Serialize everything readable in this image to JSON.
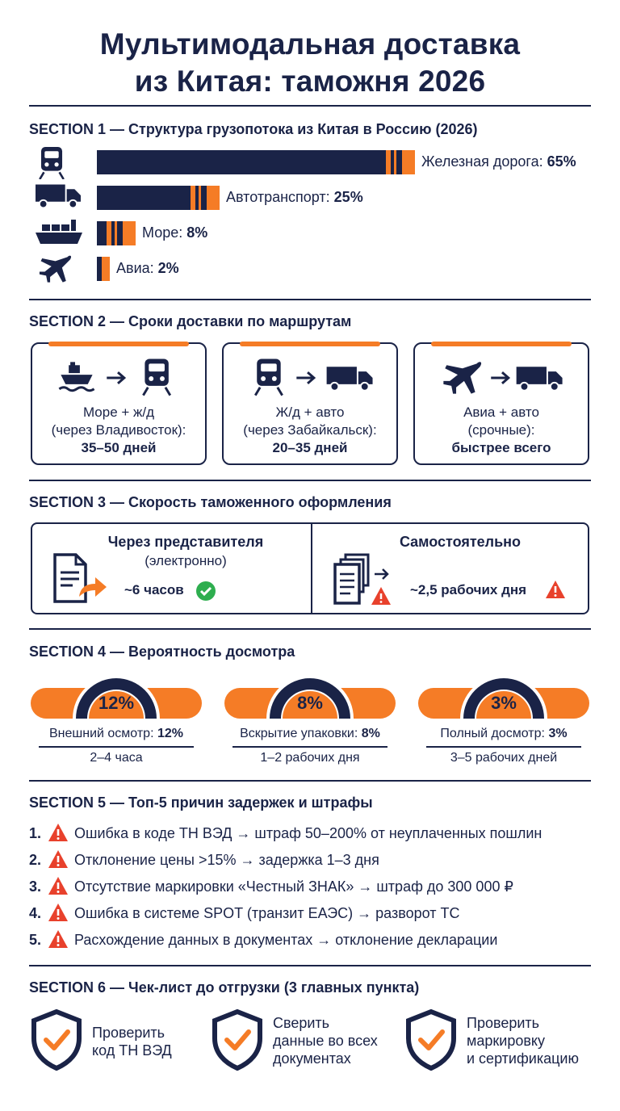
{
  "title": {
    "line1": "Мультимодальная доставка",
    "line2": "из Китая: таможня 2026"
  },
  "colors": {
    "navy": "#1a2347",
    "orange": "#f57c26",
    "green": "#2eae4f",
    "warning": "#e8412c"
  },
  "section1": {
    "num": "SECTION 1",
    "title": "— Структура грузопотока из Китая в Россию (2026)",
    "chart_data": {
      "type": "bar",
      "categories": [
        "Железная дорога",
        "Автотранспорт",
        "Море",
        "Авиа"
      ],
      "values": [
        65,
        25,
        8,
        2
      ],
      "unit": "%"
    },
    "rows": [
      {
        "icon": "train-icon",
        "name": "Железная дорога:",
        "value": "65%"
      },
      {
        "icon": "truck-icon",
        "name": "Автотранспорт:",
        "value": "25%"
      },
      {
        "icon": "ship-icon",
        "name": "Море:",
        "value": "8%"
      },
      {
        "icon": "plane-icon",
        "name": "Авиа:",
        "value": "2%"
      }
    ]
  },
  "section2": {
    "num": "SECTION 2",
    "title": "— Сроки доставки по маршрутам",
    "routes": [
      {
        "icons": [
          "ship-icon",
          "arrow-right-icon",
          "train-icon"
        ],
        "line1": "Море + ж/д",
        "line2": "(через Владивосток):",
        "value": "35–50 дней"
      },
      {
        "icons": [
          "train-icon",
          "arrow-right-icon",
          "truck-icon"
        ],
        "line1": "Ж/д + авто",
        "line2": "(через Забайкальск):",
        "value": "20–35 дней"
      },
      {
        "icons": [
          "plane-icon",
          "arrow-right-icon",
          "truck-icon"
        ],
        "line1": "Авиа + авто",
        "line2": "(срочные):",
        "value": "быстрее всего"
      }
    ]
  },
  "section3": {
    "num": "SECTION 3",
    "title": "— Скорость таможенного оформления",
    "left": {
      "head": "Через представителя",
      "sub": "(электронно)",
      "value": "~6 часов",
      "icon": "document-send-icon",
      "status_icon": "check-circle-icon"
    },
    "right": {
      "head": "Самостоятельно",
      "value": "~2,5 рабочих дня",
      "icon": "documents-stack-icon",
      "status_icon": "warning-icon"
    }
  },
  "section4": {
    "num": "SECTION 4",
    "title": "— Вероятность досмотра",
    "gauges": [
      {
        "pct": "12%",
        "fraction": 0.12,
        "label": "Внешний осмотр:",
        "label_value": "12%",
        "time": "2–4 часа"
      },
      {
        "pct": "8%",
        "fraction": 0.08,
        "label": "Вскрытие упаковки:",
        "label_value": "8%",
        "time": "1–2 рабочих дня"
      },
      {
        "pct": "3%",
        "fraction": 0.03,
        "label": "Полный досмотр:",
        "label_value": "3%",
        "time": "3–5 рабочих дней"
      }
    ]
  },
  "section5": {
    "num": "SECTION 5",
    "title": "— Топ-5 причин задержек и штрафы",
    "reasons": [
      {
        "num": "1.",
        "text": "Ошибка в коде ТН ВЭД → штраф 50–200% от неуплаченных пошлин"
      },
      {
        "num": "2.",
        "text": "Отклонение цены >15% → задержка 1–3 дня"
      },
      {
        "num": "3.",
        "text": "Отсутствие маркировки «Честный ЗНАК» → штраф до 300 000 ₽"
      },
      {
        "num": "4.",
        "text": "Ошибка в системе SPOT (транзит ЕАЭС) → разворот ТС"
      },
      {
        "num": "5.",
        "text": "Расхождение данных в документах → отклонение декларации"
      }
    ]
  },
  "section6": {
    "num": "SECTION 6",
    "title": "— Чек-лист до отгрузки (3 главных пункта)",
    "items": [
      {
        "line1": "Проверить",
        "line2": "код ТН ВЭД",
        "line3": ""
      },
      {
        "line1": "Сверить",
        "line2": "данные во всех",
        "line3": "документах"
      },
      {
        "line1": "Проверить",
        "line2": "маркировку",
        "line3": "и сертификацию"
      }
    ]
  }
}
